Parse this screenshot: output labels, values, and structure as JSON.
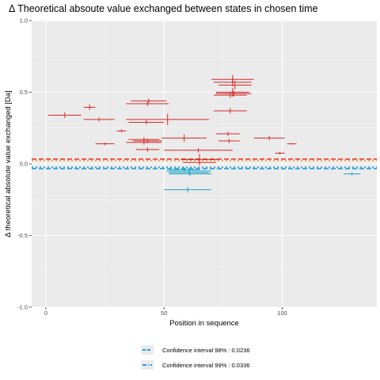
{
  "chart_data": {
    "type": "scatter",
    "title": "Δ Theoretical absoute value exchanged between states in chosen time",
    "xlabel": "Position in sequence",
    "ylabel": "Δ theoretical absolute value exchanged [Da]",
    "xlim": [
      -6,
      140
    ],
    "ylim": [
      -1.0,
      1.0
    ],
    "x_ticks": [
      0,
      50,
      100
    ],
    "y_ticks": [
      -1.0,
      -0.5,
      0.0,
      0.5,
      1.0
    ],
    "y_tick_labels": [
      "-1.0",
      "-0.5",
      "0.0",
      "0.5",
      "1.0"
    ],
    "grid": true,
    "legend_position": "bottom",
    "colors": {
      "positive": "#d62728",
      "negative": "#1ba3c6",
      "ci98": "#ef3b2c",
      "ci99": "#e8a33d",
      "ci_neg": "#1f9fd6"
    },
    "confidence_intervals": [
      {
        "label": "Confidence interval 98% : 0.0236",
        "value": 0.0236
      },
      {
        "label": "Confidence interval 99% : 0.0336",
        "value": 0.0336
      }
    ],
    "segments": [
      {
        "start": 1,
        "end": 15,
        "y": 0.34,
        "err": 0.02
      },
      {
        "start": 16,
        "end": 21,
        "y": 0.395,
        "err": 0.02
      },
      {
        "start": 16,
        "end": 29,
        "y": 0.31,
        "err": 0.015
      },
      {
        "start": 21,
        "end": 29,
        "y": 0.14,
        "err": 0.01
      },
      {
        "start": 30,
        "end": 34,
        "y": 0.23,
        "err": 0.01
      },
      {
        "start": 34,
        "end": 52,
        "y": 0.42,
        "err": 0.015
      },
      {
        "start": 36,
        "end": 51,
        "y": 0.44,
        "err": 0.015
      },
      {
        "start": 35,
        "end": 50,
        "y": 0.29,
        "err": 0.015
      },
      {
        "start": 34,
        "end": 69,
        "y": 0.31,
        "err": 0.04
      },
      {
        "start": 35,
        "end": 48,
        "y": 0.17,
        "err": 0.015
      },
      {
        "start": 34,
        "end": 49,
        "y": 0.15,
        "err": 0.015
      },
      {
        "start": 37,
        "end": 49,
        "y": 0.16,
        "err": 0.015
      },
      {
        "start": 38,
        "end": 48,
        "y": 0.1,
        "err": 0.015
      },
      {
        "start": 49,
        "end": 68,
        "y": 0.18,
        "err": 0.025
      },
      {
        "start": 50,
        "end": 79,
        "y": 0.095,
        "err": 0.015
      },
      {
        "start": 57,
        "end": 73,
        "y": 0.03,
        "err": 0.04
      },
      {
        "start": 58,
        "end": 72,
        "y": 0.01,
        "err": 0.02
      },
      {
        "start": 70,
        "end": 88,
        "y": 0.59,
        "err": 0.03
      },
      {
        "start": 71,
        "end": 87,
        "y": 0.57,
        "err": 0.03
      },
      {
        "start": 73,
        "end": 87,
        "y": 0.55,
        "err": 0.03
      },
      {
        "start": 72,
        "end": 86,
        "y": 0.5,
        "err": 0.03
      },
      {
        "start": 72,
        "end": 87,
        "y": 0.49,
        "err": 0.02
      },
      {
        "start": 71,
        "end": 85,
        "y": 0.48,
        "err": 0.02
      },
      {
        "start": 71,
        "end": 85,
        "y": 0.37,
        "err": 0.02
      },
      {
        "start": 72,
        "end": 82,
        "y": 0.21,
        "err": 0.015
      },
      {
        "start": 73,
        "end": 82,
        "y": 0.16,
        "err": 0.015
      },
      {
        "start": 88,
        "end": 101,
        "y": 0.18,
        "err": 0.015
      },
      {
        "start": 97,
        "end": 101,
        "y": 0.075,
        "err": 0.01
      },
      {
        "start": 102,
        "end": 106,
        "y": 0.14,
        "err": 0.005
      },
      {
        "start": 52,
        "end": 65,
        "y": -0.04,
        "err": 0.015
      },
      {
        "start": 51,
        "end": 70,
        "y": -0.05,
        "err": 0.015
      },
      {
        "start": 52,
        "end": 69,
        "y": -0.06,
        "err": 0.015
      },
      {
        "start": 52,
        "end": 70,
        "y": -0.07,
        "err": 0.015
      },
      {
        "start": 50,
        "end": 70,
        "y": -0.18,
        "err": 0.02
      },
      {
        "start": 126,
        "end": 133,
        "y": -0.07,
        "err": 0.01
      }
    ]
  }
}
